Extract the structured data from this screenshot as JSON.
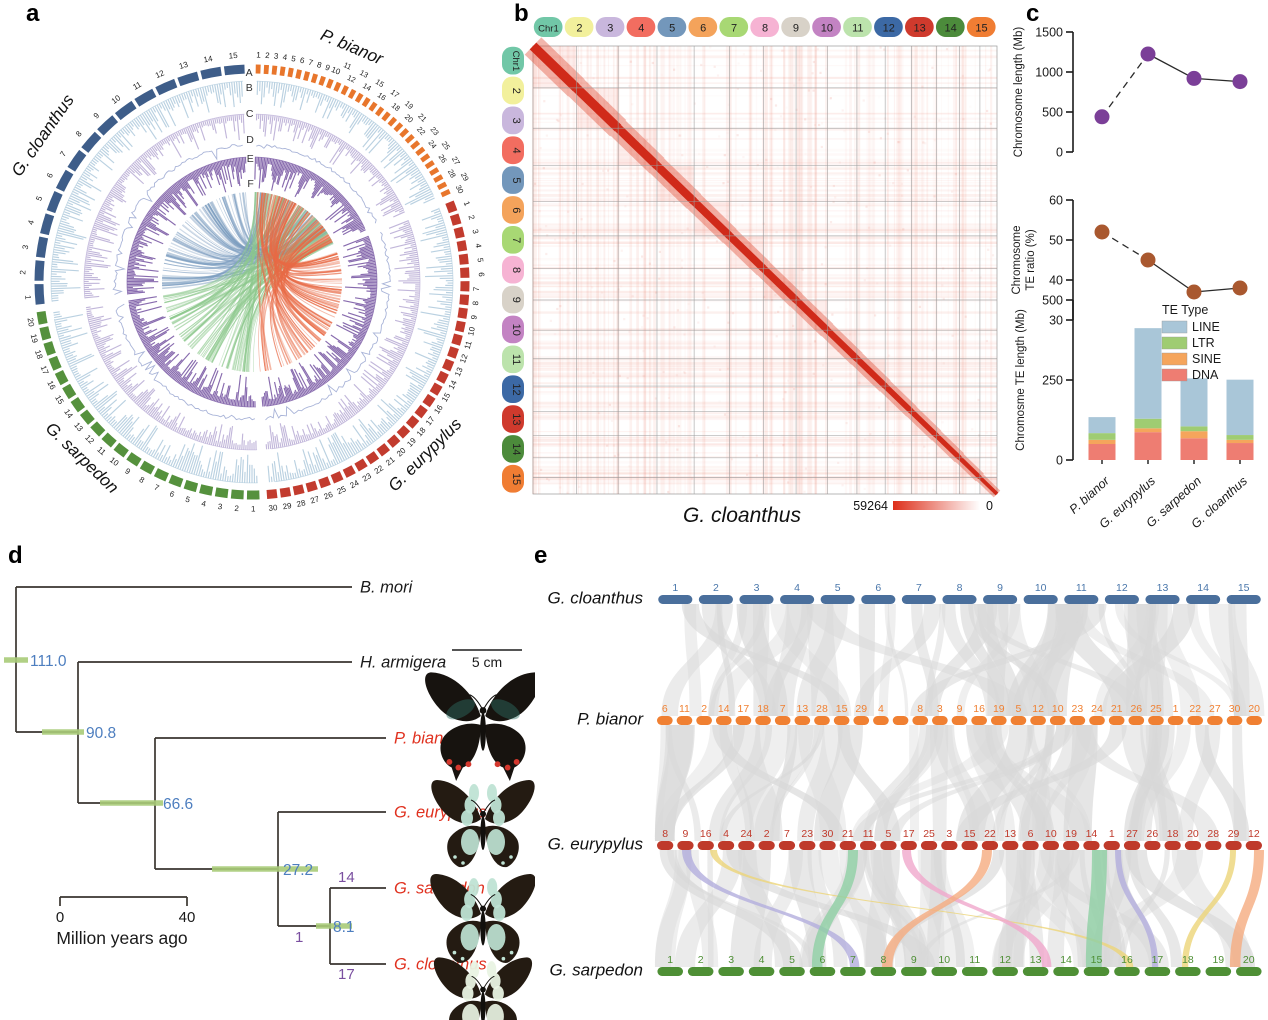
{
  "panel_labels": {
    "a": "a",
    "b": "b",
    "c": "c",
    "d": "d",
    "e": "e"
  },
  "panel_a": {
    "track_labels": [
      "A",
      "B",
      "C",
      "D",
      "E",
      "F"
    ],
    "species": [
      {
        "name": "P. bianor",
        "color": "#e8762c",
        "chrom_count": 30,
        "arc_start": 1,
        "arc_end": 66,
        "label_angle": 23
      },
      {
        "name": "G. eurypylus",
        "color": "#c23b2e",
        "chrom_count": 30,
        "arc_start": 68,
        "arc_end": 176,
        "label_angle": 135
      },
      {
        "name": "G. sarpedon",
        "color": "#55913d",
        "chrom_count": 20,
        "arc_start": 178,
        "arc_end": 262,
        "label_angle": 224
      },
      {
        "name": "G. cloanthus",
        "color": "#3e5d89",
        "chrom_count": 15,
        "arc_start": 264,
        "arc_end": 358,
        "label_angle": 305
      }
    ],
    "track_colors": {
      "B": "#b7cfe0",
      "C": "#bfb4d9",
      "D": "#a9b4d8",
      "E": "#8264aa"
    },
    "link_colors": {
      "to_cloanthus": "#7b9cbf",
      "to_sarpedon": "#8cc88c",
      "to_eurypylus": "#e86a45"
    }
  },
  "panel_b": {
    "chromosomes": [
      "Chr1",
      "2",
      "3",
      "4",
      "5",
      "6",
      "7",
      "8",
      "9",
      "10",
      "11",
      "12",
      "13",
      "14",
      "15"
    ],
    "chrom_colors": [
      "#71c7a7",
      "#f2f09c",
      "#c9b7dd",
      "#f26d60",
      "#7397bb",
      "#f4a35b",
      "#a8d874",
      "#f6b3d3",
      "#d8d2c8",
      "#c383c3",
      "#bce3ac",
      "#3c69a5",
      "#cf3a2d",
      "#4c8b3b",
      "#f07d33"
    ],
    "relative_sizes": [
      1.32,
      1.27,
      1.18,
      1.13,
      1.08,
      1.03,
      0.99,
      0.95,
      0.9,
      0.86,
      0.8,
      0.76,
      0.7,
      0.62,
      0.52
    ],
    "axis_label": "G. cloanthus",
    "heat_scale": {
      "max": "59264",
      "min": "0",
      "max_color": "#dd2f1a"
    }
  },
  "chart_data": [
    {
      "id": "chromosome_length",
      "type": "line",
      "title": "",
      "ylabel": "Chromosome length (Mb)",
      "categories": [
        "P. bianor",
        "G. eurypylus",
        "G. sarpedon",
        "G. cloanthus"
      ],
      "values": [
        440,
        1225,
        920,
        880
      ],
      "yticks": [
        0,
        500,
        1000,
        1500
      ],
      "ylim": [
        0,
        1500
      ],
      "point_color": "#7b3f98",
      "dashed_segment": [
        0,
        1
      ]
    },
    {
      "id": "te_ratio",
      "type": "line",
      "title": "",
      "ylabel_lines": [
        "Chromosome",
        "TE ratio (%)"
      ],
      "categories": [
        "P. bianor",
        "G. eurypylus",
        "G. sarpedon",
        "G. cloanthus"
      ],
      "values": [
        52,
        45,
        37,
        38
      ],
      "yticks": [
        30,
        40,
        50,
        60
      ],
      "ylim": [
        30,
        60
      ],
      "point_color": "#a9582f",
      "dashed_segment": [
        0,
        1
      ]
    },
    {
      "id": "te_length",
      "type": "stacked_bar",
      "title": "",
      "ylabel": "Chromosme TE length (Mb)",
      "categories": [
        "P. bianor",
        "G. eurypylus",
        "G. sarpedon",
        "G. cloanthus"
      ],
      "yticks": [
        0,
        250,
        500
      ],
      "ylim": [
        0,
        500
      ],
      "legend_title": "TE Type",
      "legend_position": "top-right",
      "series": [
        {
          "name": "LINE",
          "color": "#a9c6d8",
          "values": [
            50,
            283,
            150,
            173
          ]
        },
        {
          "name": "LTR",
          "color": "#9fcc72",
          "values": [
            21,
            30,
            15,
            15
          ]
        },
        {
          "name": "SINE",
          "color": "#f5a55c",
          "values": [
            13,
            12,
            22,
            10
          ]
        },
        {
          "name": "DNA",
          "color": "#ee7d72",
          "values": [
            50,
            87,
            68,
            53
          ]
        }
      ]
    }
  ],
  "panel_d": {
    "taxa": [
      {
        "name": "B. mori",
        "color": "#1a1a1a"
      },
      {
        "name": "H. armigera",
        "color": "#1a1a1a"
      },
      {
        "name": "P. bianor",
        "color": "#e0311f"
      },
      {
        "name": "G. eurypylus",
        "color": "#e0311f"
      },
      {
        "name": "G. sarpedon",
        "color": "#e0311f"
      },
      {
        "name": "G. cloanthus",
        "color": "#e0311f"
      }
    ],
    "node_ages": [
      "111.0",
      "90.8",
      "66.6",
      "27.2",
      "8.1"
    ],
    "branch_numbers": [
      "14",
      "1",
      "17"
    ],
    "age_color": "#4d7ebf",
    "branch_number_color": "#7a4fa0",
    "ci_color": "#a9cb78",
    "scale_bar": {
      "tick_left": "0",
      "tick_right": "40",
      "caption": "Million years ago"
    },
    "photo_scale_label": "5 cm"
  },
  "panel_e": {
    "rows": [
      {
        "name": "G. cloanthus",
        "color": "#4a6f9c",
        "label_color": "#4a77ab",
        "labels": [
          "1",
          "2",
          "3",
          "4",
          "5",
          "6",
          "7",
          "8",
          "9",
          "10",
          "11",
          "12",
          "13",
          "14",
          "15"
        ]
      },
      {
        "name": "P. bianor",
        "color": "#f08032",
        "label_color": "#f08032",
        "labels": [
          "6",
          "11",
          "2",
          "14",
          "17",
          "18",
          "7",
          "13",
          "28",
          "15",
          "29",
          "4",
          "",
          "8",
          "3",
          "9",
          "16",
          "19",
          "5",
          "12",
          "10",
          "23",
          "24",
          "21",
          "26",
          "25",
          "1",
          "22",
          "27",
          "30",
          "20"
        ]
      },
      {
        "name": "G. eurypylus",
        "color": "#bf3a2b",
        "label_color": "#c03a2b",
        "labels": [
          "8",
          "9",
          "16",
          "4",
          "24",
          "2",
          "7",
          "23",
          "30",
          "21",
          "11",
          "5",
          "17",
          "25",
          "3",
          "15",
          "22",
          "13",
          "6",
          "10",
          "19",
          "14",
          "1",
          "27",
          "26",
          "18",
          "20",
          "28",
          "29",
          "12"
        ]
      },
      {
        "name": "G. sarpedon",
        "color": "#4e8f35",
        "label_color": "#4e8f35",
        "labels": [
          "1",
          "2",
          "3",
          "4",
          "5",
          "6",
          "7",
          "8",
          "9",
          "10",
          "11",
          "12",
          "13",
          "14",
          "15",
          "16",
          "17",
          "18",
          "19",
          "20"
        ]
      }
    ],
    "ribbon_gray": "#d8d8d8",
    "ribbon_colors": [
      "#b3aedd",
      "#ecd478",
      "#8fcfa4",
      "#f0a8cc",
      "#f5ab80"
    ]
  }
}
